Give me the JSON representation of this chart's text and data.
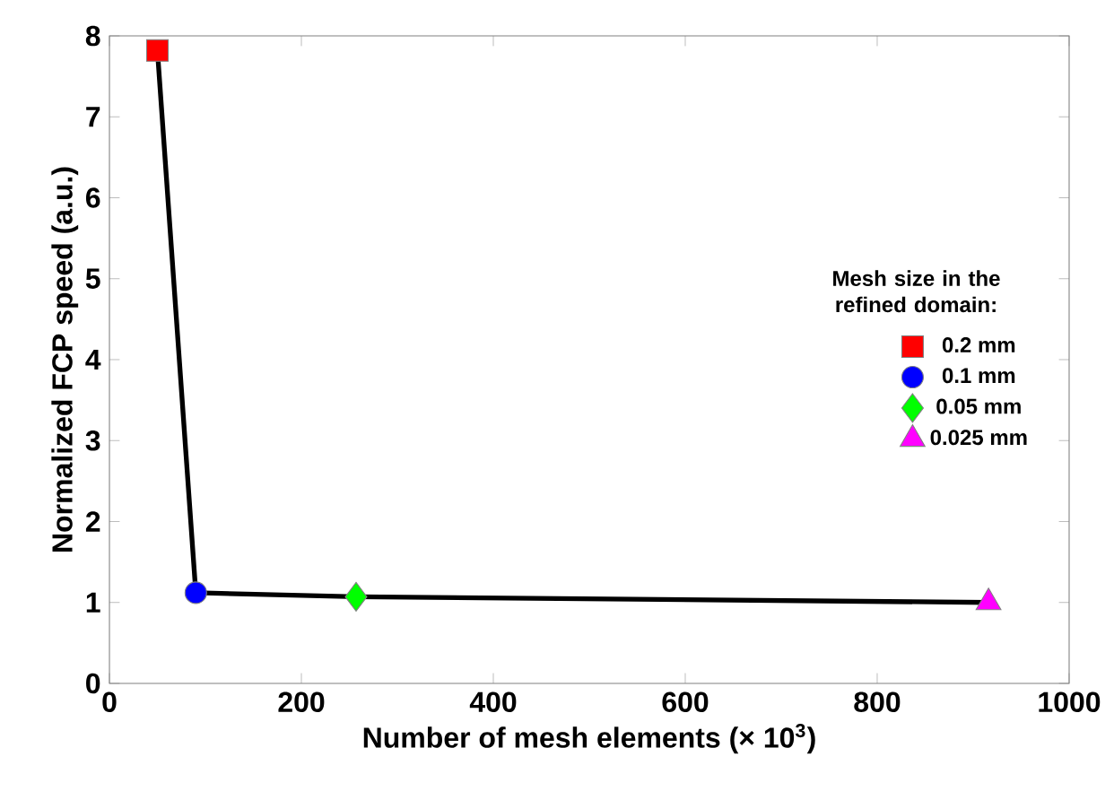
{
  "chart_data": {
    "type": "scatter",
    "xlabel": "Number of mesh elements (× 10$^{3}$)",
    "ylabel": "Normalized FCP speed (a.u.)",
    "legend_title": "Mesh size in the refined domain:",
    "xlim": [
      0,
      1000
    ],
    "ylim": [
      0,
      8
    ],
    "xticks": [
      0,
      200,
      400,
      600,
      800,
      1000
    ],
    "yticks": [
      0,
      1,
      2,
      3,
      4,
      5,
      6,
      7,
      8
    ],
    "grid": false,
    "legend": "right",
    "series": [
      {
        "type": "line",
        "color": "#000000",
        "marker": "none",
        "x": [
          50,
          90,
          257,
          916
        ],
        "values": [
          7.82,
          1.12,
          1.07,
          1.0
        ]
      },
      {
        "name": "0.2 mm",
        "color": "#ff0000",
        "marker": "square",
        "x": [
          50
        ],
        "values": [
          7.82
        ]
      },
      {
        "name": "0.1 mm",
        "color": "#0000ff",
        "marker": "circle",
        "x": [
          90
        ],
        "values": [
          1.12
        ]
      },
      {
        "name": "0.05 mm",
        "color": "#00ff00",
        "marker": "diamond",
        "x": [
          257
        ],
        "values": [
          1.07
        ]
      },
      {
        "name": "0.025 mm",
        "color": "#ff00ff",
        "marker": "triangle",
        "x": [
          916
        ],
        "values": [
          1.0
        ]
      }
    ]
  }
}
